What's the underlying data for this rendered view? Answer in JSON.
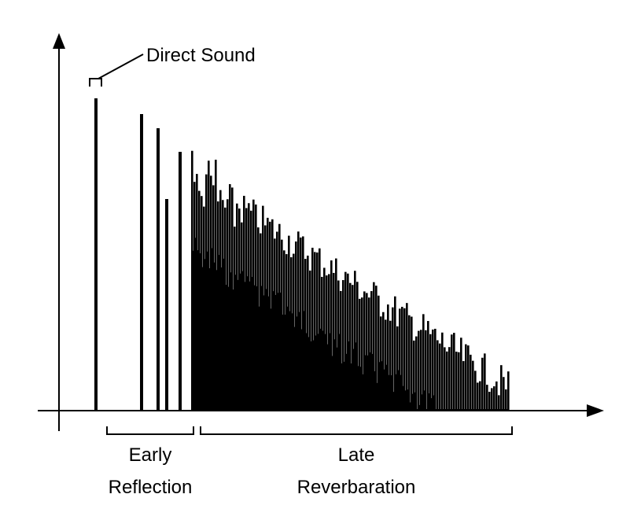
{
  "labels": {
    "direct_sound": "Direct Sound",
    "early_line1": "Early",
    "early_line2": "Reflection",
    "late_line1": "Late",
    "late_line2": "Reverbaration"
  },
  "colors": {
    "ink": "#000000",
    "background": "#ffffff"
  }
}
